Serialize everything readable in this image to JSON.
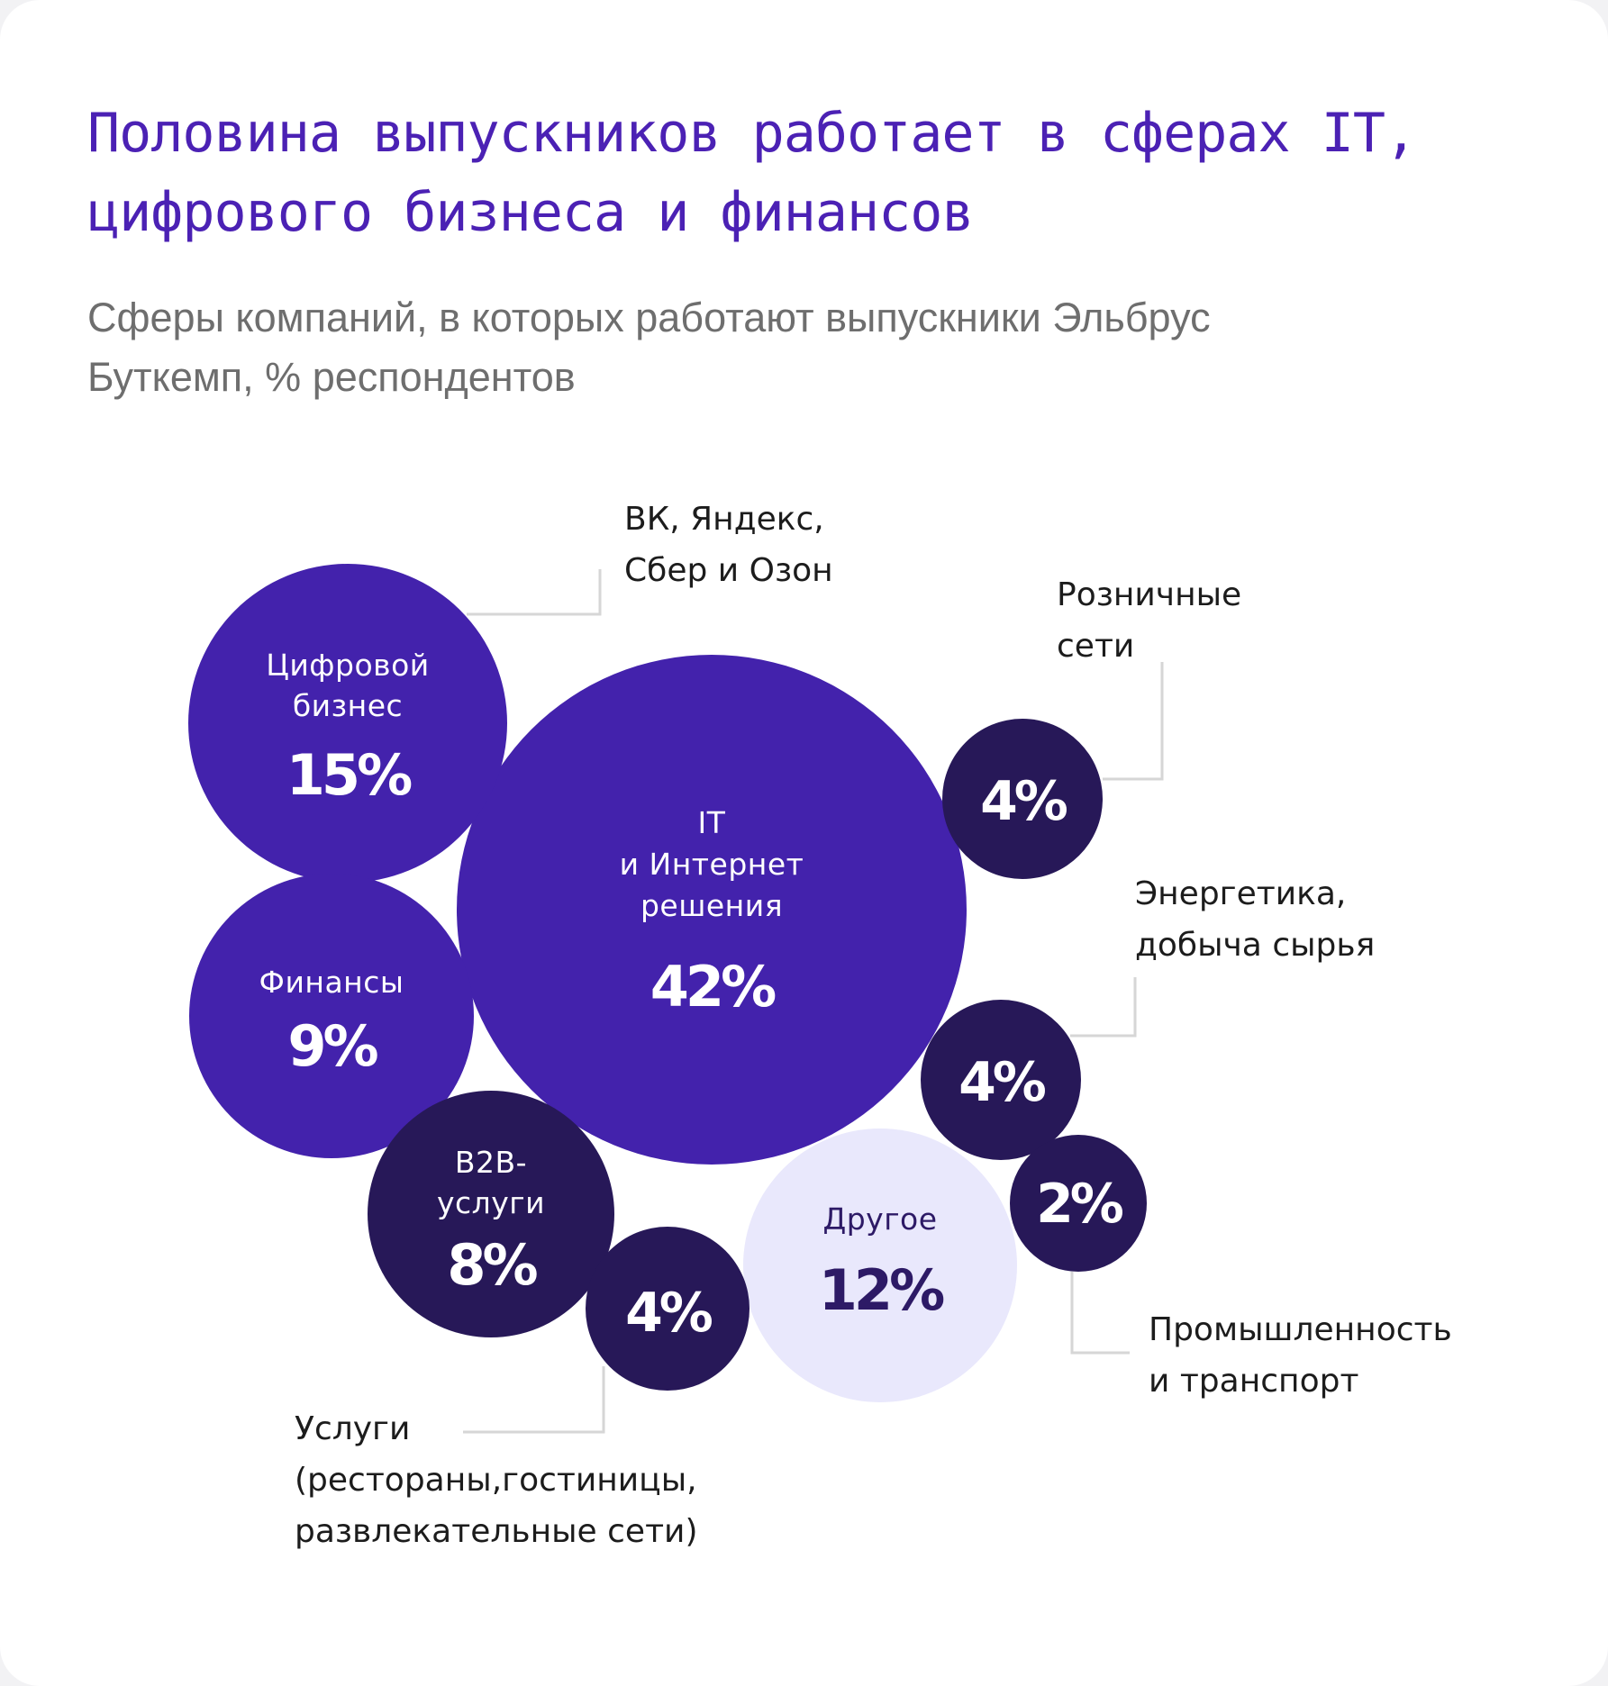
{
  "title_lines": [
    "Половина выпускников работает в сферах IT,",
    "цифрового бизнеса и финансов"
  ],
  "subtitle_lines": [
    "Сферы компаний, в которых работают выпускники Эльбрус",
    "Буткемп, % респондентов"
  ],
  "colors": {
    "primary": "#4322ac",
    "dark": "#271858",
    "light": "#e9e8fc",
    "light_text": "#2d1a66",
    "leader_line": "#d6d6d6"
  },
  "chart_data": {
    "type": "bubble",
    "unit": "%",
    "bubbles": [
      {
        "id": "it",
        "label_lines": [
          "IT",
          "и Интернет",
          "решения"
        ],
        "value": 42,
        "display": "42%",
        "tone": "primary"
      },
      {
        "id": "digital",
        "label_lines": [
          "Цифровой",
          "бизнес"
        ],
        "value": 15,
        "display": "15%",
        "tone": "primary",
        "callout_lines": [
          "ВК, Яндекс,",
          "Сбер и Озон"
        ]
      },
      {
        "id": "other",
        "label_lines": [
          "Другое"
        ],
        "value": 12,
        "display": "12%",
        "tone": "light"
      },
      {
        "id": "finance",
        "label_lines": [
          "Финансы"
        ],
        "value": 9,
        "display": "9%",
        "tone": "primary"
      },
      {
        "id": "b2b",
        "label_lines": [
          "B2B-",
          "услуги"
        ],
        "value": 8,
        "display": "8%",
        "tone": "dark"
      },
      {
        "id": "retail",
        "label_lines": [],
        "value": 4,
        "display": "4%",
        "tone": "dark",
        "callout_lines": [
          "Розничные",
          "сети"
        ]
      },
      {
        "id": "energy",
        "label_lines": [],
        "value": 4,
        "display": "4%",
        "tone": "dark",
        "callout_lines": [
          "Энергетика,",
          "добыча сырья"
        ]
      },
      {
        "id": "services",
        "label_lines": [],
        "value": 4,
        "display": "4%",
        "tone": "dark",
        "callout_lines": [
          "Услуги",
          "(рестораны,гостиницы,",
          "развлекательные сети)"
        ]
      },
      {
        "id": "industry",
        "label_lines": [],
        "value": 2,
        "display": "2%",
        "tone": "dark",
        "callout_lines": [
          "Промышленность",
          "и транспорт"
        ]
      }
    ]
  }
}
